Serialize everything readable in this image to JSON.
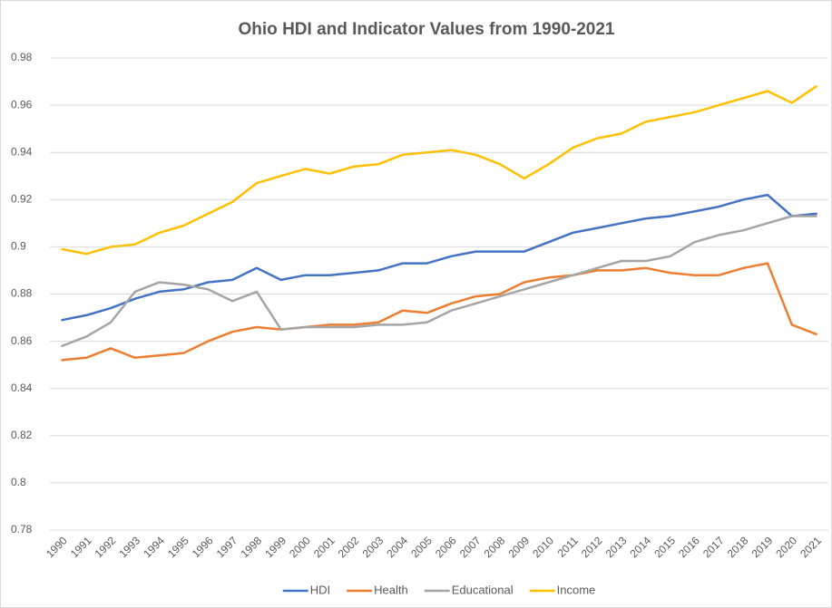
{
  "chart_data": {
    "type": "line",
    "title": "Ohio HDI and Indicator Values from 1990-2021",
    "categories": [
      "1990",
      "1991",
      "1992",
      "1993",
      "1994",
      "1995",
      "1996",
      "1997",
      "1998",
      "1999",
      "2000",
      "2001",
      "2002",
      "2003",
      "2004",
      "2005",
      "2006",
      "2007",
      "2008",
      "2009",
      "2010",
      "2011",
      "2012",
      "2013",
      "2014",
      "2015",
      "2016",
      "2017",
      "2018",
      "2019",
      "2020",
      "2021"
    ],
    "series": [
      {
        "name": "HDI",
        "color": "#4472c4",
        "values": [
          0.869,
          0.871,
          0.874,
          0.878,
          0.881,
          0.882,
          0.885,
          0.886,
          0.891,
          0.886,
          0.888,
          0.888,
          0.889,
          0.89,
          0.893,
          0.893,
          0.896,
          0.898,
          0.898,
          0.898,
          0.902,
          0.906,
          0.908,
          0.91,
          0.912,
          0.913,
          0.915,
          0.917,
          0.92,
          0.922,
          0.913,
          0.914
        ]
      },
      {
        "name": "Health",
        "color": "#ed7d31",
        "values": [
          0.852,
          0.853,
          0.857,
          0.853,
          0.854,
          0.855,
          0.86,
          0.864,
          0.866,
          0.865,
          0.866,
          0.867,
          0.867,
          0.868,
          0.873,
          0.872,
          0.876,
          0.879,
          0.88,
          0.885,
          0.887,
          0.888,
          0.89,
          0.89,
          0.891,
          0.889,
          0.888,
          0.888,
          0.891,
          0.893,
          0.867,
          0.863
        ]
      },
      {
        "name": "Educational",
        "color": "#a5a5a5",
        "values": [
          0.858,
          0.862,
          0.868,
          0.881,
          0.885,
          0.884,
          0.882,
          0.877,
          0.881,
          0.865,
          0.866,
          0.866,
          0.866,
          0.867,
          0.867,
          0.868,
          0.873,
          0.876,
          0.879,
          0.882,
          0.885,
          0.888,
          0.891,
          0.894,
          0.894,
          0.896,
          0.902,
          0.905,
          0.907,
          0.91,
          0.913,
          0.913
        ]
      },
      {
        "name": "Income",
        "color": "#ffc000",
        "values": [
          0.899,
          0.897,
          0.9,
          0.901,
          0.906,
          0.909,
          0.914,
          0.919,
          0.927,
          0.93,
          0.933,
          0.931,
          0.934,
          0.935,
          0.939,
          0.94,
          0.941,
          0.939,
          0.935,
          0.929,
          0.935,
          0.942,
          0.946,
          0.948,
          0.953,
          0.955,
          0.957,
          0.96,
          0.963,
          0.966,
          0.961,
          0.968
        ]
      }
    ],
    "ylim": [
      0.78,
      0.98
    ],
    "yticks": [
      0.78,
      0.8,
      0.82,
      0.84,
      0.86,
      0.88,
      0.9,
      0.92,
      0.94,
      0.96,
      0.98
    ],
    "grid": true,
    "legend": "bottom"
  }
}
